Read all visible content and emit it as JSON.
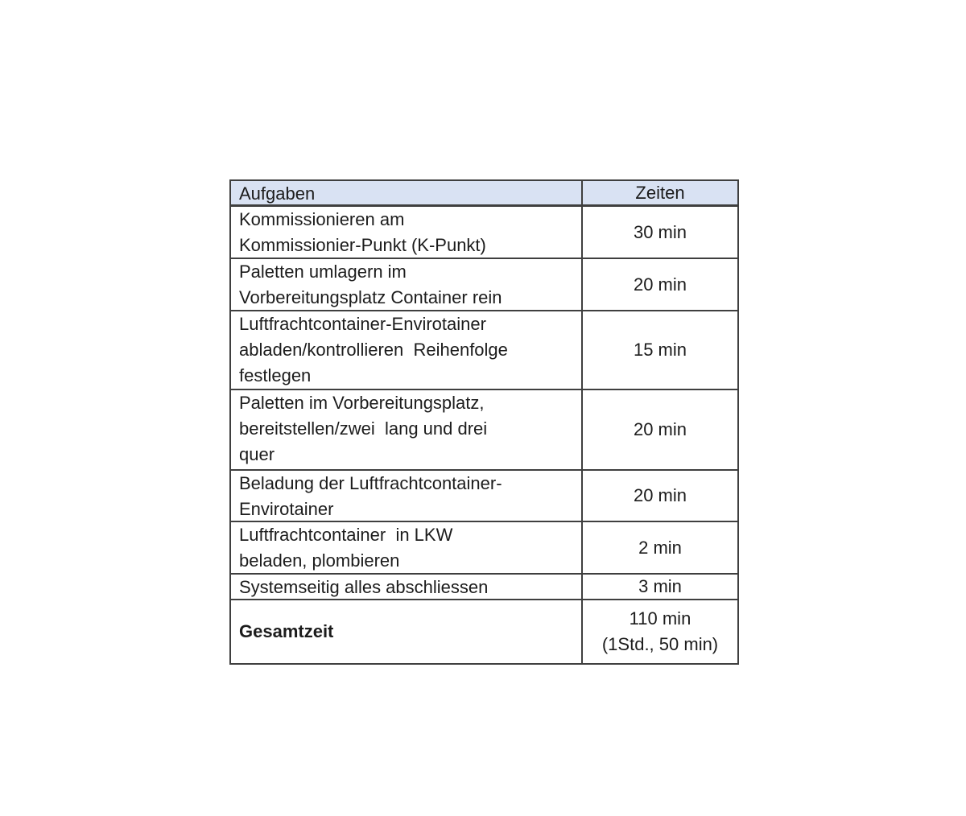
{
  "table": {
    "headers": {
      "tasks": "Aufgaben",
      "times": "Zeiten"
    },
    "rows": [
      {
        "task": "Kommissionieren am\nKommissionier-Punkt (K-Punkt)",
        "time": "30 min"
      },
      {
        "task": "Paletten umlagern im\nVorbereitungsplatz Container rein",
        "time": "20 min"
      },
      {
        "task": "Luftfrachtcontainer-Envirotainer\nabladen/kontrollieren  Reihenfolge\nfestlegen",
        "time": "15 min"
      },
      {
        "task": "Paletten im Vorbereitungsplatz,\nbereitstellen/zwei  lang und drei\nquer",
        "time": "20 min"
      },
      {
        "task": "Beladung der Luftfrachtcontainer-\nEnvirotainer",
        "time": "20 min"
      },
      {
        "task": "Luftfrachtcontainer  in LKW\nbeladen, plombieren",
        "time": "2 min"
      },
      {
        "task": "Systemseitig alles abschliessen",
        "time": "3 min"
      }
    ],
    "total": {
      "label": "Gesamtzeit",
      "time_primary": "110 min",
      "time_secondary": "(1Std.,  50 min)"
    }
  },
  "colors": {
    "header_bg": "#d9e2f3",
    "border": "#3f3f3f",
    "text": "#1c1c1c"
  }
}
